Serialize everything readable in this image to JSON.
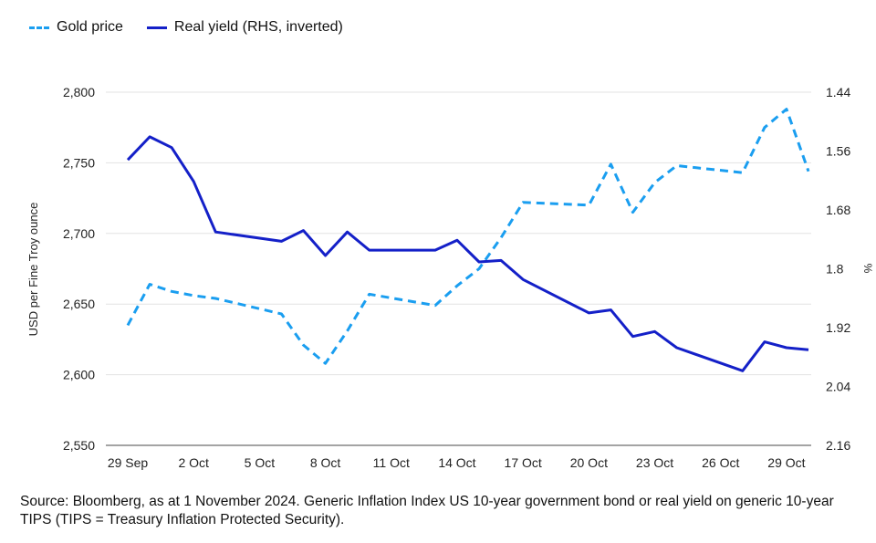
{
  "legend": {
    "gold_label": "Gold price",
    "yield_label": "Real yield (RHS, inverted)"
  },
  "caption": "Source: Bloomberg, as at 1 November 2024. Generic Inflation Index US 10-year government bond or real yield on generic 10-year TIPS (TIPS = Treasury Inflation Protected Security).",
  "colors": {
    "gold": "#1a9ef0",
    "yield": "#1420c8",
    "grid": "#e3e3e3",
    "axis": "#6d6d6d"
  },
  "chart_data": {
    "type": "line",
    "ylabel": "USD per Fine Troy ounce",
    "y2label": "%",
    "ylim": [
      2550,
      2800
    ],
    "y2lim": [
      1.44,
      2.16
    ],
    "y2_inverted": true,
    "y_ticks": [
      "2,800",
      "2,750",
      "2,700",
      "2,650",
      "2,600",
      "2,550"
    ],
    "y2_ticks": [
      "1.44",
      "1.56",
      "1.68",
      "1.8",
      "1.92",
      "2.04",
      "2.16"
    ],
    "x_ticks": [
      "29 Sep",
      "2 Oct",
      "5 Oct",
      "8 Oct",
      "11 Oct",
      "14 Oct",
      "17 Oct",
      "20 Oct",
      "23 Oct",
      "26 Oct",
      "29 Oct"
    ],
    "x_tick_days": [
      0,
      3,
      6,
      9,
      12,
      15,
      18,
      21,
      24,
      27,
      30
    ],
    "series": [
      {
        "name": "Gold price",
        "axis": "left",
        "style": "dashed",
        "days": [
          0,
          1,
          2,
          3,
          4,
          7,
          8,
          9,
          10,
          11,
          14,
          15,
          16,
          17,
          18,
          21,
          22,
          23,
          24,
          25,
          28,
          29,
          30,
          31
        ],
        "values": [
          2635,
          2664,
          2659,
          2656,
          2654,
          2643,
          2621,
          2608,
          2631,
          2657,
          2649,
          2663,
          2675,
          2697,
          2722,
          2720,
          2749,
          2715,
          2736,
          2748,
          2743,
          2775,
          2788,
          2744
        ]
      },
      {
        "name": "Real yield (RHS, inverted)",
        "axis": "right",
        "style": "solid",
        "days": [
          0,
          1,
          2,
          3,
          4,
          7,
          8,
          9,
          10,
          11,
          14,
          15,
          16,
          17,
          18,
          21,
          22,
          23,
          24,
          25,
          28,
          29,
          30,
          31
        ],
        "values": [
          1.578,
          1.531,
          1.553,
          1.622,
          1.725,
          1.744,
          1.722,
          1.773,
          1.725,
          1.762,
          1.762,
          1.742,
          1.786,
          1.783,
          1.822,
          1.89,
          1.884,
          1.938,
          1.928,
          1.961,
          2.008,
          1.949,
          1.961,
          1.965
        ]
      }
    ]
  }
}
